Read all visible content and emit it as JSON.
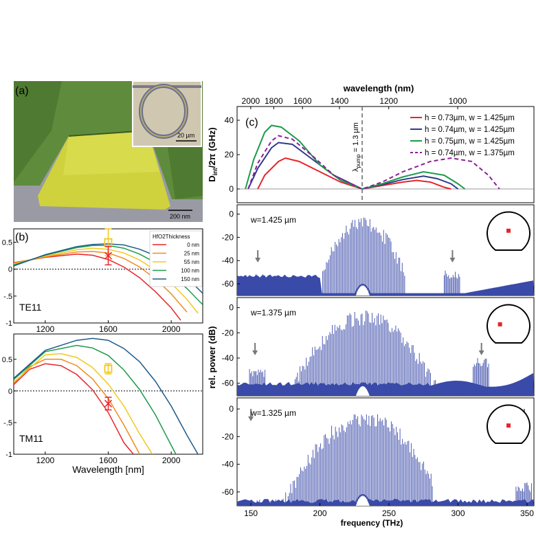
{
  "panel_a": {
    "label": "(a)",
    "inset_scale": "20 µm",
    "main_scale": "200 nm",
    "colors": {
      "background": "#5f8c3c",
      "trapezoid": "#cfd23c",
      "substrate": "#9a9aa5"
    }
  },
  "chart_data": [
    {
      "id": "b_te11",
      "type": "line",
      "panel_label": "(b)",
      "annotation": "TE11",
      "xlabel": "Wavelength [nm]",
      "xticks": [
        1200,
        1600,
        2000
      ],
      "yticks": [
        "0.5",
        "0",
        "-.5",
        "-1"
      ],
      "xlim": [
        1000,
        2200
      ],
      "ylim": [
        -1,
        0.75
      ],
      "legend_title": "HfO2Thickness",
      "legend_position": "top-right",
      "series": [
        {
          "name": "0 nm",
          "color": "#e8242a",
          "points": [
            [
              1000,
              0.12
            ],
            [
              1200,
              0.22
            ],
            [
              1400,
              0.28
            ],
            [
              1500,
              0.26
            ],
            [
              1600,
              0.18
            ],
            [
              1700,
              0.04
            ],
            [
              1800,
              -0.16
            ],
            [
              1900,
              -0.42
            ],
            [
              2000,
              -0.72
            ],
            [
              2060,
              -0.95
            ]
          ]
        },
        {
          "name": "25 nm",
          "color": "#f28a1c",
          "points": [
            [
              1000,
              0.11
            ],
            [
              1200,
              0.23
            ],
            [
              1400,
              0.32
            ],
            [
              1500,
              0.33
            ],
            [
              1600,
              0.3
            ],
            [
              1700,
              0.2
            ],
            [
              1800,
              0.04
            ],
            [
              1900,
              -0.18
            ],
            [
              2000,
              -0.46
            ],
            [
              2100,
              -0.8
            ]
          ]
        },
        {
          "name": "55 nm",
          "color": "#f2c81c",
          "points": [
            [
              1000,
              0.1
            ],
            [
              1200,
              0.24
            ],
            [
              1400,
              0.36
            ],
            [
              1500,
              0.39
            ],
            [
              1600,
              0.37
            ],
            [
              1700,
              0.3
            ],
            [
              1800,
              0.17
            ],
            [
              1900,
              -0.02
            ],
            [
              2000,
              -0.26
            ],
            [
              2100,
              -0.56
            ],
            [
              2170,
              -0.82
            ]
          ]
        },
        {
          "name": "100 nm",
          "color": "#1c9a4a",
          "points": [
            [
              1000,
              0.08
            ],
            [
              1200,
              0.26
            ],
            [
              1400,
              0.4
            ],
            [
              1500,
              0.44
            ],
            [
              1600,
              0.44
            ],
            [
              1700,
              0.39
            ],
            [
              1800,
              0.28
            ],
            [
              1900,
              0.12
            ],
            [
              2000,
              -0.09
            ],
            [
              2100,
              -0.36
            ],
            [
              2200,
              -0.66
            ]
          ]
        },
        {
          "name": "150 nm",
          "color": "#1c5a8a",
          "points": [
            [
              1000,
              0.06
            ],
            [
              1200,
              0.27
            ],
            [
              1400,
              0.42
            ],
            [
              1500,
              0.46
            ],
            [
              1600,
              0.47
            ],
            [
              1700,
              0.45
            ],
            [
              1800,
              0.37
            ],
            [
              1900,
              0.25
            ],
            [
              2000,
              0.07
            ],
            [
              2100,
              -0.16
            ],
            [
              2200,
              -0.45
            ]
          ]
        }
      ],
      "markers": [
        {
          "x": 1600,
          "y": 0.5,
          "err": 0.25,
          "color": "#f2c81c",
          "shape": "square"
        },
        {
          "x": 1600,
          "y": 0.25,
          "err": 0.17,
          "color": "#e8242a",
          "shape": "x"
        }
      ]
    },
    {
      "id": "b_tm11",
      "type": "line",
      "annotation": "TM11",
      "xlabel": "Wavelength [nm]",
      "xticks": [
        1200,
        1600,
        2000
      ],
      "yticks": [
        "0.5",
        "0",
        "-.5",
        "-1"
      ],
      "xlim": [
        1000,
        2200
      ],
      "ylim": [
        -1,
        0.9
      ],
      "series": [
        {
          "name": "0 nm",
          "color": "#e8242a",
          "points": [
            [
              1000,
              0.1
            ],
            [
              1100,
              0.34
            ],
            [
              1200,
              0.43
            ],
            [
              1300,
              0.4
            ],
            [
              1400,
              0.26
            ],
            [
              1500,
              0.02
            ],
            [
              1600,
              -0.34
            ],
            [
              1700,
              -0.82
            ],
            [
              1760,
              -1.0
            ]
          ]
        },
        {
          "name": "25 nm",
          "color": "#f28a1c",
          "points": [
            [
              1000,
              0.12
            ],
            [
              1100,
              0.38
            ],
            [
              1200,
              0.5
            ],
            [
              1300,
              0.5
            ],
            [
              1400,
              0.4
            ],
            [
              1500,
              0.19
            ],
            [
              1600,
              -0.12
            ],
            [
              1700,
              -0.54
            ],
            [
              1800,
              -1.0
            ]
          ]
        },
        {
          "name": "55 nm",
          "color": "#f2c81c",
          "points": [
            [
              1000,
              0.14
            ],
            [
              1200,
              0.57
            ],
            [
              1300,
              0.59
            ],
            [
              1400,
              0.53
            ],
            [
              1500,
              0.37
            ],
            [
              1600,
              0.11
            ],
            [
              1700,
              -0.24
            ],
            [
              1800,
              -0.68
            ],
            [
              1880,
              -1.0
            ]
          ]
        },
        {
          "name": "100 nm",
          "color": "#1c9a4a",
          "points": [
            [
              1000,
              0.18
            ],
            [
              1200,
              0.62
            ],
            [
              1400,
              0.72
            ],
            [
              1500,
              0.68
            ],
            [
              1600,
              0.56
            ],
            [
              1700,
              0.33
            ],
            [
              1800,
              0.02
            ],
            [
              1900,
              -0.38
            ],
            [
              2000,
              -0.86
            ],
            [
              2030,
              -1.0
            ]
          ]
        },
        {
          "name": "150 nm",
          "color": "#1c5a8a",
          "points": [
            [
              1000,
              0.2
            ],
            [
              1200,
              0.64
            ],
            [
              1400,
              0.8
            ],
            [
              1500,
              0.83
            ],
            [
              1600,
              0.8
            ],
            [
              1700,
              0.67
            ],
            [
              1800,
              0.46
            ],
            [
              1900,
              0.15
            ],
            [
              2000,
              -0.24
            ],
            [
              2100,
              -0.7
            ],
            [
              2170,
              -1.0
            ]
          ]
        }
      ],
      "markers": [
        {
          "x": 1600,
          "y": 0.35,
          "err": 0.08,
          "color": "#f2c81c",
          "shape": "square"
        },
        {
          "x": 1600,
          "y": -0.2,
          "err": 0.1,
          "color": "#e8242a",
          "shape": "x"
        }
      ]
    },
    {
      "id": "c_dint",
      "type": "line",
      "panel_label": "(c)",
      "top_axis_label": "wavelength (nm)",
      "top_ticks": [
        2000,
        1800,
        1600,
        1400,
        1200,
        1000
      ],
      "ylabel": "Dint/2π (GHz)",
      "ylabel_main": "D",
      "ylabel_sub": "int",
      "ylabel_rest": "/2π (GHz)",
      "yticks": [
        0,
        20,
        40
      ],
      "xlim": [
        140,
        355
      ],
      "ylim": [
        -8,
        48
      ],
      "pump_label": "λpump = 1.3 µm",
      "pump_label_main": "λ",
      "pump_label_sub": "pump",
      "pump_label_rest": " = 1.3 µm",
      "pump_x": 230.6,
      "legend_position": "top-right",
      "series": [
        {
          "name": "h = 0.73µm, w = 1.425µm",
          "color": "#e8242a",
          "dash": false,
          "points": [
            [
              155,
              0
            ],
            [
              160,
              8
            ],
            [
              170,
              16
            ],
            [
              175,
              18
            ],
            [
              185,
              16
            ],
            [
              200,
              10
            ],
            [
              215,
              4
            ],
            [
              230.6,
              0
            ],
            [
              245,
              2
            ],
            [
              260,
              4
            ],
            [
              270,
              5
            ],
            [
              280,
              4
            ],
            [
              290,
              1
            ],
            [
              295,
              0
            ]
          ]
        },
        {
          "name": "h = 0.74µm, w = 1.425µm",
          "color": "#2e3a8c",
          "dash": false,
          "points": [
            [
              148,
              0
            ],
            [
              155,
              12
            ],
            [
              165,
              24
            ],
            [
              170,
              27
            ],
            [
              180,
              26
            ],
            [
              195,
              17
            ],
            [
              210,
              8
            ],
            [
              230.6,
              0
            ],
            [
              245,
              2.5
            ],
            [
              260,
              5.5
            ],
            [
              275,
              7.5
            ],
            [
              285,
              6
            ],
            [
              295,
              3
            ],
            [
              300,
              0
            ]
          ]
        },
        {
          "name": "h = 0.75µm, w = 1.425µm",
          "color": "#1c9a4a",
          "dash": false,
          "points": [
            [
              146,
              0
            ],
            [
              152,
              17
            ],
            [
              160,
              33
            ],
            [
              165,
              37
            ],
            [
              172,
              36
            ],
            [
              185,
              28
            ],
            [
              200,
              14
            ],
            [
              215,
              5
            ],
            [
              230.6,
              0
            ],
            [
              245,
              3
            ],
            [
              260,
              7
            ],
            [
              275,
              10
            ],
            [
              290,
              8
            ],
            [
              300,
              3
            ],
            [
              305,
              0
            ]
          ]
        },
        {
          "name": "h = 0.74µm, w = 1.375µm",
          "color": "#8c1c9a",
          "dash": true,
          "points": [
            [
              148,
              0
            ],
            [
              155,
              15
            ],
            [
              165,
              28
            ],
            [
              170,
              31
            ],
            [
              180,
              29
            ],
            [
              195,
              19
            ],
            [
              210,
              8
            ],
            [
              230.6,
              0
            ],
            [
              245,
              4
            ],
            [
              260,
              10
            ],
            [
              280,
              16
            ],
            [
              295,
              18
            ],
            [
              310,
              16
            ],
            [
              322,
              8
            ],
            [
              330,
              0
            ]
          ]
        }
      ]
    },
    {
      "id": "c_spec1",
      "type": "bar",
      "annotation": "w=1.425 µm",
      "yticks": [
        0,
        -20,
        -40,
        -60
      ],
      "ylim": [
        -70,
        8
      ],
      "xlim": [
        140,
        355
      ],
      "arrows_at": [
        155,
        296
      ],
      "envelope": {
        "x_start": 202,
        "x_end": 262,
        "peak": -2,
        "floor": -60,
        "center": 231,
        "width": 17
      },
      "side_features": [
        {
          "x": 155,
          "level": -51
        },
        {
          "x": 296,
          "level": -48
        }
      ],
      "baseline": -55,
      "cross_section_dot": [
        0.5,
        0.48
      ]
    },
    {
      "id": "c_spec2",
      "type": "bar",
      "annotation": "w=1.375 µm",
      "yticks": [
        0,
        -20,
        -40,
        -60
      ],
      "ylim": [
        -70,
        8
      ],
      "xlim": [
        140,
        355
      ],
      "arrows_at": [
        153,
        317
      ],
      "envelope": {
        "x_start": 173,
        "x_end": 320,
        "peak": -2,
        "floor": -62,
        "center": 232,
        "width": 26
      },
      "side_features": [
        {
          "x": 155,
          "level": -48
        },
        {
          "x": 317,
          "level": -40
        }
      ],
      "baseline": -62,
      "cross_section_dot": [
        0.3,
        0.5
      ]
    },
    {
      "id": "c_spec3",
      "type": "bar",
      "annotation": "w=1.325 µm",
      "xlabel": "frequency (THz)",
      "xticks": [
        150,
        200,
        250,
        300,
        350
      ],
      "yticks": [
        0,
        -20,
        -40,
        -60
      ],
      "ylim": [
        -70,
        8
      ],
      "xlim": [
        140,
        355
      ],
      "arrows_at": [
        150,
        348
      ],
      "envelope": {
        "x_start": 150,
        "x_end": 282,
        "peak": -2,
        "floor": -65,
        "center": 232,
        "width": 28
      },
      "side_features": [
        {
          "x": 348,
          "level": -52
        }
      ],
      "baseline": -68,
      "cross_section_dot": [
        0.5,
        0.52
      ]
    }
  ],
  "shared_ylabel": "rel. power (dB)"
}
